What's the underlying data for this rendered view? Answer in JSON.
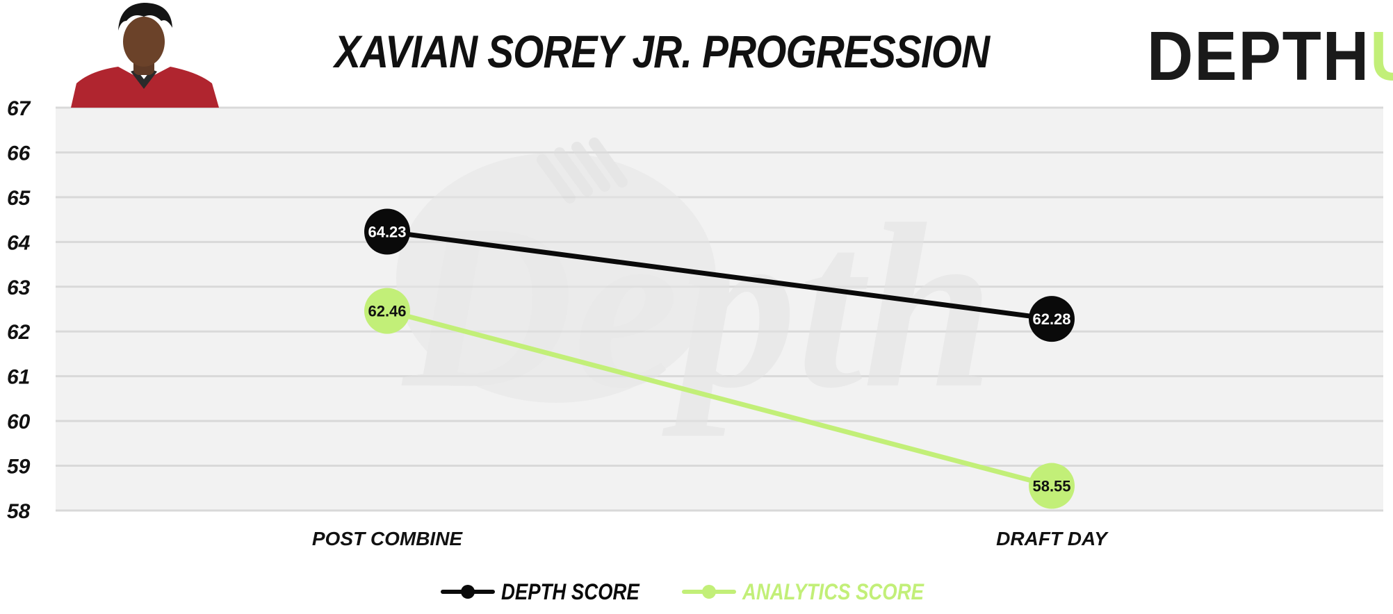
{
  "title": "XAVIAN SOREY JR. PROGRESSION",
  "logo": {
    "main": "DEPTH",
    "accent": "U"
  },
  "watermark": "Depth",
  "colors": {
    "depth": "#0a0a0a",
    "analytics": "#c2ef78",
    "plot_bg": "#f2f2f2",
    "grid": "#d9d9d9",
    "jersey": "#b0252f"
  },
  "chart_data": {
    "type": "line",
    "categories": [
      "POST COMBINE",
      "DRAFT DAY"
    ],
    "ylim": [
      58,
      67
    ],
    "yticks": [
      58,
      59,
      60,
      61,
      62,
      63,
      64,
      65,
      66,
      67
    ],
    "grid": true,
    "legend_position": "bottom-center",
    "series": [
      {
        "name": "DEPTH SCORE",
        "values": [
          64.23,
          62.28
        ],
        "labels": [
          "64.23",
          "62.28"
        ],
        "color": "#0a0a0a",
        "label_color": "#ffffff"
      },
      {
        "name": "ANALYTICS SCORE",
        "values": [
          62.46,
          58.55
        ],
        "labels": [
          "62.46",
          "58.55"
        ],
        "color": "#c2ef78",
        "label_color": "#111111"
      }
    ]
  }
}
